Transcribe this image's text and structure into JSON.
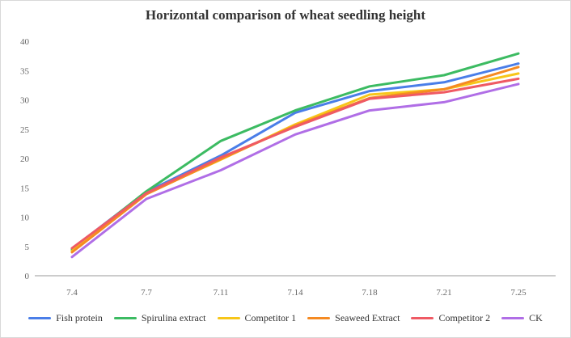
{
  "chart_data": {
    "type": "line",
    "title": "Horizontal comparison of wheat seedling height",
    "xlabel": "",
    "ylabel": "",
    "categories": [
      "7.4",
      "7.7",
      "7.11",
      "7.14",
      "7.18",
      "7.21",
      "7.25"
    ],
    "ylim": [
      0,
      40
    ],
    "yticks": [
      0,
      5,
      10,
      15,
      20,
      25,
      30,
      35,
      40
    ],
    "grid": false,
    "legend": "bottom",
    "series": [
      {
        "name": "Fish protein",
        "color": "#4a7ee8",
        "values": [
          4.6,
          14.3,
          20.5,
          27.8,
          31.5,
          33.0,
          36.2
        ]
      },
      {
        "name": "Spirulina extract",
        "color": "#3cbb62",
        "values": [
          4.4,
          14.4,
          23.0,
          28.2,
          32.3,
          34.2,
          37.9
        ]
      },
      {
        "name": "Competitor 1",
        "color": "#f7c619",
        "values": [
          4.2,
          14.0,
          19.8,
          25.8,
          30.9,
          31.8,
          34.5
        ]
      },
      {
        "name": "Seaweed Extract",
        "color": "#f58a22",
        "values": [
          4.0,
          13.9,
          19.9,
          25.6,
          30.3,
          31.8,
          35.6
        ]
      },
      {
        "name": "Competitor 2",
        "color": "#ef5a64",
        "values": [
          4.7,
          14.1,
          20.2,
          25.4,
          30.2,
          31.3,
          33.6
        ]
      },
      {
        "name": "CK",
        "color": "#b06ee6",
        "values": [
          3.2,
          13.1,
          18.0,
          24.1,
          28.2,
          29.6,
          32.7
        ]
      }
    ]
  }
}
